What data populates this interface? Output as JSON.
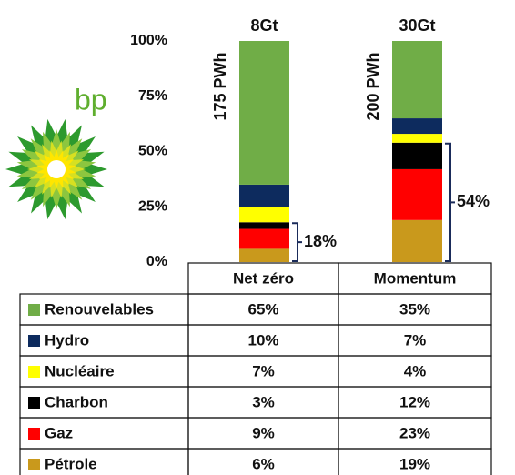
{
  "logo_text": "bp",
  "chart_data": {
    "type": "stacked_bar",
    "categories": [
      "Net zéro",
      "Momentum"
    ],
    "top_labels": [
      "8Gt",
      "30Gt"
    ],
    "side_labels": [
      "175 PWh",
      "200 PWh"
    ],
    "annotations": [
      "18%",
      "54%"
    ],
    "ylim": [
      0,
      100
    ],
    "yticks": [
      {
        "value": 0,
        "label": "0%"
      },
      {
        "value": 25,
        "label": "25%"
      },
      {
        "value": 50,
        "label": "50%"
      },
      {
        "value": 75,
        "label": "75%"
      },
      {
        "value": 100,
        "label": "100%"
      }
    ],
    "series": [
      {
        "name": "Renouvelables",
        "color": "#70ad47",
        "values": [
          65,
          35
        ],
        "value_labels": [
          "65%",
          "35%"
        ]
      },
      {
        "name": "Hydro",
        "color": "#0d2b5e",
        "values": [
          10,
          7
        ],
        "value_labels": [
          "10%",
          "7%"
        ]
      },
      {
        "name": "Nucléaire",
        "color": "#ffff00",
        "values": [
          7,
          4
        ],
        "value_labels": [
          "7%",
          "4%"
        ]
      },
      {
        "name": "Charbon",
        "color": "#000000",
        "values": [
          3,
          12
        ],
        "value_labels": [
          "3%",
          "12%"
        ]
      },
      {
        "name": "Gaz",
        "color": "#ff0000",
        "values": [
          9,
          23
        ],
        "value_labels": [
          "9%",
          "23%"
        ]
      },
      {
        "name": "Pétrole",
        "color": "#c9991c",
        "values": [
          6,
          19
        ],
        "value_labels": [
          "6%",
          "19%"
        ]
      }
    ]
  }
}
